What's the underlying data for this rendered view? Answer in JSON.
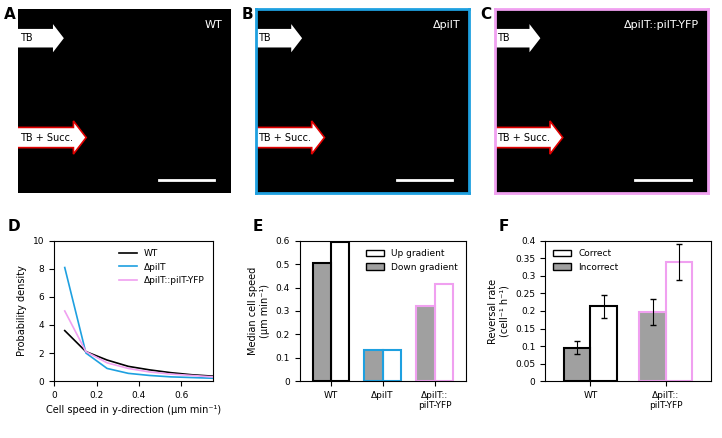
{
  "images": [
    {
      "panel": "A",
      "strain": "WT",
      "border_color": null,
      "arrows": [
        {
          "text": "TB",
          "edge": "#000000"
        },
        {
          "text": "TB + Succ.",
          "edge": "#e00000"
        }
      ]
    },
    {
      "panel": "B",
      "strain": "ΔpilT",
      "border_color": "#1ea0e0",
      "arrows": [
        {
          "text": "TB",
          "edge": "#000000"
        },
        {
          "text": "TB + Succ.",
          "edge": "#e00000"
        }
      ]
    },
    {
      "panel": "C",
      "strain": "ΔpilT::pilT-YFP",
      "border_color": "#f0a0f0",
      "arrows": [
        {
          "text": "TB",
          "edge": "#000000"
        },
        {
          "text": "TB + Succ.",
          "edge": "#e00000"
        }
      ]
    }
  ],
  "chart_data": [
    {
      "panel": "D",
      "type": "line",
      "x_label": "Cell speed in y-direction (µm min⁻¹)",
      "y_label": "Probability density",
      "x": [
        0.05,
        0.15,
        0.25,
        0.35,
        0.45,
        0.55,
        0.65,
        0.75
      ],
      "series": [
        {
          "name": "WT",
          "color": "#000000",
          "values": [
            3.6,
            2.1,
            1.5,
            1.05,
            0.8,
            0.6,
            0.45,
            0.35
          ]
        },
        {
          "name": "ΔpilT",
          "color": "#1ea0e0",
          "values": [
            8.1,
            2.0,
            0.9,
            0.55,
            0.4,
            0.3,
            0.25,
            0.2
          ]
        },
        {
          "name": "ΔpilT::pilT-YFP",
          "color": "#f0a0f0",
          "values": [
            5.0,
            2.1,
            1.3,
            0.9,
            0.65,
            0.5,
            0.4,
            0.3
          ]
        }
      ],
      "xlim": [
        0,
        0.75
      ],
      "xticks": [
        0,
        0.2,
        0.4,
        0.6
      ],
      "ylim": [
        0,
        10
      ],
      "yticks": [
        0,
        2,
        4,
        6,
        8,
        10
      ],
      "legend": "upper right"
    },
    {
      "panel": "E",
      "type": "bar",
      "y_label": "Median cell speed\n(µm min⁻¹)",
      "categories": [
        "WT",
        "ΔpilT",
        "ΔpilT::\npilT-YFP"
      ],
      "colors": [
        "#000000",
        "#1ea0e0",
        "#f0a0f0"
      ],
      "series": [
        {
          "name": "Up gradient",
          "color": "#ffffff",
          "values": [
            0.595,
            0.135,
            0.415
          ]
        },
        {
          "name": "Down gradient",
          "color": "#a0a0a0",
          "values": [
            0.505,
            0.135,
            0.32
          ]
        }
      ],
      "ylim": [
        0,
        0.6
      ],
      "yticks": [
        0,
        0.1,
        0.2,
        0.3,
        0.4,
        0.5,
        0.6
      ],
      "legend": "upper right"
    },
    {
      "panel": "F",
      "type": "bar",
      "y_label": "Reversal rate\n(cell⁻¹ h⁻¹)",
      "categories": [
        "WT",
        "ΔpilT::\npilT-YFP"
      ],
      "colors": [
        "#000000",
        "#f0a0f0"
      ],
      "series": [
        {
          "name": "Correct",
          "color": "#ffffff",
          "values": [
            0.213,
            0.34
          ],
          "errors": [
            0.032,
            0.052
          ]
        },
        {
          "name": "Incorrect",
          "color": "#a0a0a0",
          "values": [
            0.095,
            0.198
          ],
          "errors": [
            0.018,
            0.037
          ]
        }
      ],
      "ylim": [
        0,
        0.4
      ],
      "yticks": [
        0,
        0.05,
        0.1,
        0.15,
        0.2,
        0.25,
        0.3,
        0.35,
        0.4
      ],
      "legend": "upper left"
    }
  ]
}
